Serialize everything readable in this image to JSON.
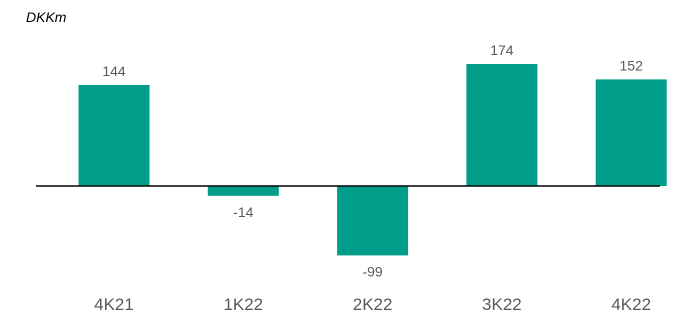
{
  "chart_data": {
    "type": "bar",
    "unit_label": "DKKm",
    "categories": [
      "4K21",
      "1K22",
      "2K22",
      "3K22",
      "4K22"
    ],
    "values": [
      144,
      -14,
      -99,
      174,
      152
    ],
    "data_labels": [
      "144",
      "-14",
      "-99",
      "174",
      "152"
    ],
    "bar_color": "#009E8A",
    "axis_color": "#000000",
    "label_color": "#595959",
    "grid": false,
    "legend": "none"
  }
}
